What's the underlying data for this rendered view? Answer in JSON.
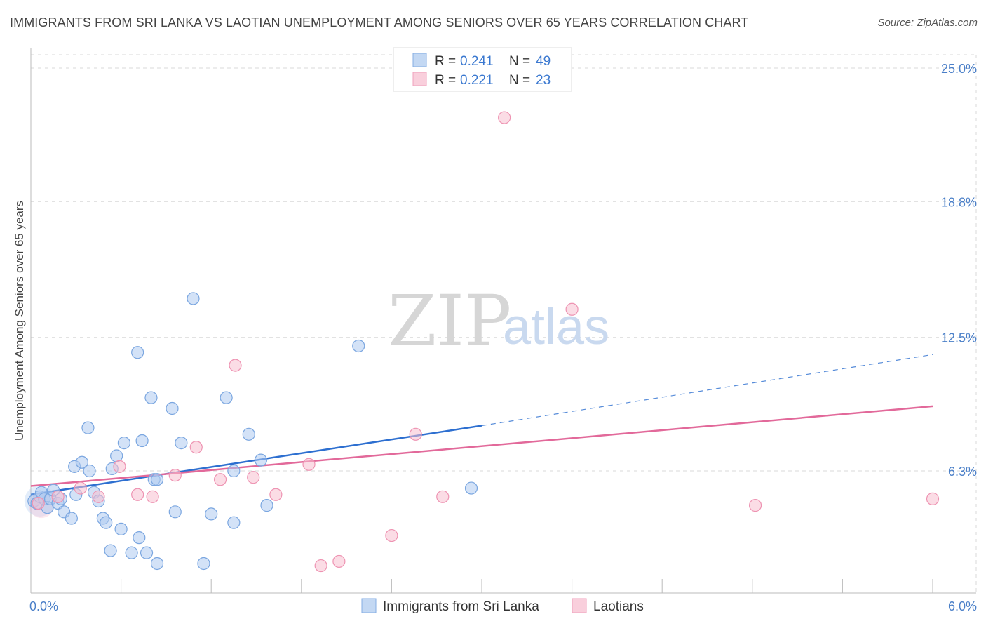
{
  "header": {
    "title": "IMMIGRANTS FROM SRI LANKA VS LAOTIAN UNEMPLOYMENT AMONG SENIORS OVER 65 YEARS CORRELATION CHART",
    "source": "Source: ZipAtlas.com"
  },
  "watermark": {
    "zip": "ZIP",
    "atlas": "atlas"
  },
  "legend": {
    "rows": [
      {
        "r_label": "R = ",
        "r_value": "0.241",
        "n_label": "N = ",
        "n_value": "49"
      },
      {
        "r_label": "R = ",
        "r_value": "0.221",
        "n_label": "N = ",
        "n_value": "23"
      }
    ]
  },
  "bottom_legend": {
    "items": [
      {
        "label": "Immigrants from Sri Lanka"
      },
      {
        "label": "Laotians"
      }
    ]
  },
  "colors": {
    "blue_fill": "#aecbf0",
    "blue_stroke": "#7aa6e0",
    "blue_line": "#2d6fd0",
    "pink_fill": "#f7bfd0",
    "pink_stroke": "#ee93b2",
    "pink_line": "#e2699a",
    "grid": "#d9d9d9",
    "tick_text": "#4a7fc8"
  },
  "chart_data": {
    "type": "scatter",
    "title": "IMMIGRANTS FROM SRI LANKA VS LAOTIAN UNEMPLOYMENT AMONG SENIORS OVER 65 YEARS CORRELATION CHART",
    "xlabel": "",
    "ylabel": "Unemployment Among Seniors over 65 years",
    "xlim": [
      0.0,
      6.0
    ],
    "ylim": [
      0.0,
      25.0
    ],
    "x_tick_labels": [
      "0.0%",
      "6.0%"
    ],
    "y_ticks": [
      6.3,
      12.5,
      18.8,
      25.0
    ],
    "y_tick_labels": [
      "6.3%",
      "12.5%",
      "18.8%",
      "25.0%"
    ],
    "grid": true,
    "legend_position": "top-center",
    "series": [
      {
        "name": "Immigrants from Sri Lanka",
        "r": 0.241,
        "n": 49,
        "points": [
          [
            0.02,
            4.9
          ],
          [
            0.04,
            4.8
          ],
          [
            0.06,
            5.1
          ],
          [
            0.07,
            5.3
          ],
          [
            0.09,
            5.0
          ],
          [
            0.11,
            4.6
          ],
          [
            0.13,
            5.0
          ],
          [
            0.15,
            5.4
          ],
          [
            0.18,
            4.8
          ],
          [
            0.2,
            5.0
          ],
          [
            0.22,
            4.4
          ],
          [
            0.27,
            4.1
          ],
          [
            0.29,
            6.5
          ],
          [
            0.3,
            5.2
          ],
          [
            0.34,
            6.7
          ],
          [
            0.38,
            8.3
          ],
          [
            0.39,
            6.3
          ],
          [
            0.42,
            5.3
          ],
          [
            0.45,
            4.9
          ],
          [
            0.48,
            4.1
          ],
          [
            0.5,
            3.9
          ],
          [
            0.53,
            2.6
          ],
          [
            0.54,
            6.4
          ],
          [
            0.57,
            7.0
          ],
          [
            0.6,
            3.6
          ],
          [
            0.62,
            7.6
          ],
          [
            0.67,
            2.5
          ],
          [
            0.71,
            11.8
          ],
          [
            0.72,
            3.2
          ],
          [
            0.74,
            7.7
          ],
          [
            0.77,
            2.5
          ],
          [
            0.8,
            9.7
          ],
          [
            0.82,
            5.9
          ],
          [
            0.84,
            2.0
          ],
          [
            0.84,
            5.9
          ],
          [
            0.94,
            9.2
          ],
          [
            0.96,
            4.4
          ],
          [
            1.0,
            7.6
          ],
          [
            1.08,
            14.3
          ],
          [
            1.15,
            2.0
          ],
          [
            1.2,
            4.3
          ],
          [
            1.3,
            9.7
          ],
          [
            1.35,
            3.9
          ],
          [
            1.35,
            6.3
          ],
          [
            1.45,
            8.0
          ],
          [
            1.53,
            6.8
          ],
          [
            1.57,
            4.7
          ],
          [
            2.18,
            12.1
          ],
          [
            2.93,
            5.5
          ]
        ]
      },
      {
        "name": "Laotians",
        "r": 0.221,
        "n": 23,
        "points": [
          [
            0.05,
            4.8
          ],
          [
            0.18,
            5.1
          ],
          [
            0.33,
            5.5
          ],
          [
            0.45,
            5.1
          ],
          [
            0.59,
            6.5
          ],
          [
            0.71,
            5.2
          ],
          [
            0.81,
            5.1
          ],
          [
            0.96,
            6.1
          ],
          [
            1.1,
            7.4
          ],
          [
            1.26,
            5.9
          ],
          [
            1.36,
            11.2
          ],
          [
            1.48,
            6.0
          ],
          [
            1.63,
            5.2
          ],
          [
            1.85,
            6.6
          ],
          [
            1.93,
            1.9
          ],
          [
            2.05,
            2.1
          ],
          [
            2.4,
            3.3
          ],
          [
            2.56,
            8.0
          ],
          [
            2.74,
            5.1
          ],
          [
            3.15,
            22.7
          ],
          [
            3.6,
            13.8
          ],
          [
            4.82,
            4.7
          ],
          [
            6.0,
            5.0
          ]
        ]
      }
    ],
    "trendlines": [
      {
        "series": "Immigrants from Sri Lanka",
        "x": [
          0.0,
          3.0
        ],
        "y": [
          5.2,
          8.4
        ],
        "dashed_extension": {
          "x": [
            3.0,
            6.0
          ],
          "y": [
            8.4,
            11.7
          ]
        }
      },
      {
        "series": "Laotians",
        "x": [
          0.0,
          6.0
        ],
        "y": [
          5.6,
          9.3
        ]
      }
    ]
  }
}
